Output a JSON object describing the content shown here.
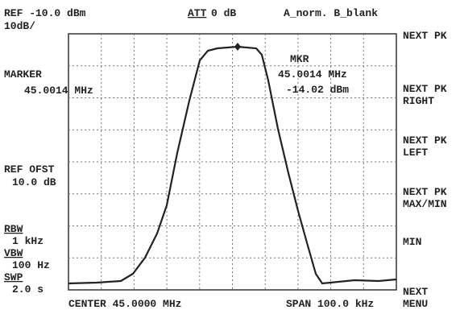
{
  "header": {
    "ref_level": "REF -10.0 dBm",
    "attenuation_label": "ATT",
    "attenuation_value": "0 dB",
    "trace_mode": "A_norm. B_blank",
    "scale": "10dB/"
  },
  "left_panel": {
    "marker_label": "MARKER",
    "marker_freq": "45.0014 MHz",
    "ref_offset_label": "REF OFST",
    "ref_offset_value": "10.0 dB",
    "rbw_label": "RBW",
    "rbw_value": "1 kHz",
    "vbw_label": "VBW",
    "vbw_value": "100 Hz",
    "sweep_label": "SWP",
    "sweep_value": "2.0 s"
  },
  "marker_readout": {
    "label": "MKR",
    "freq": "45.0014  MHz",
    "level": "-14.02  dBm"
  },
  "footer": {
    "center": "CENTER 45.0000 MHz",
    "span": "SPAN 100.0 kHz"
  },
  "softkeys": [
    [
      "NEXT PK"
    ],
    [
      "NEXT PK",
      "RIGHT"
    ],
    [
      "NEXT PK",
      "LEFT"
    ],
    [
      "NEXT PK",
      "MAX/MIN"
    ],
    [
      "MIN"
    ],
    [
      "NEXT",
      "MENU"
    ]
  ]
}
